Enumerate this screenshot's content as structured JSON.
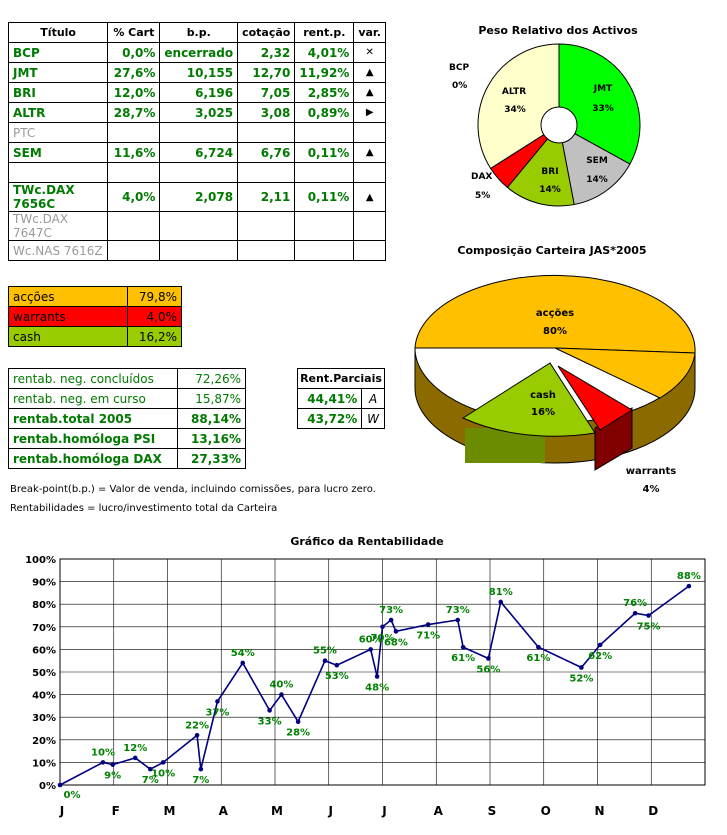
{
  "portfolio": {
    "headers": [
      "Título",
      "% Cart",
      "b.p.",
      "cotação",
      "rent.p.",
      "var."
    ],
    "rows": [
      {
        "titulo": "BCP",
        "cart": "0,0%",
        "bp": "encerrado",
        "cot": "2,32",
        "rent": "4,01%",
        "var": "✕",
        "style": "green"
      },
      {
        "titulo": "JMT",
        "cart": "27,6%",
        "bp": "10,155",
        "cot": "12,70",
        "rent": "11,92%",
        "var": "▲",
        "style": "green"
      },
      {
        "titulo": "BRI",
        "cart": "12,0%",
        "bp": "6,196",
        "cot": "7,05",
        "rent": "2,85%",
        "var": "▲",
        "style": "green"
      },
      {
        "titulo": "ALTR",
        "cart": "28,7%",
        "bp": "3,025",
        "cot": "3,08",
        "rent": "0,89%",
        "var": "▶",
        "style": "green"
      },
      {
        "titulo": "PTC",
        "cart": "",
        "bp": "",
        "cot": "",
        "rent": "",
        "var": "",
        "style": "gray"
      },
      {
        "titulo": "SEM",
        "cart": "11,6%",
        "bp": "6,724",
        "cot": "6,76",
        "rent": "0,11%",
        "var": "▲",
        "style": "green"
      },
      {
        "titulo": "",
        "cart": "",
        "bp": "",
        "cot": "",
        "rent": "",
        "var": "",
        "style": "green"
      },
      {
        "titulo": "TWc.DAX 7656C",
        "cart": "4,0%",
        "bp": "2,078",
        "cot": "2,11",
        "rent": "0,11%",
        "var": "▲",
        "style": "green"
      },
      {
        "titulo": "TWc.DAX 7647C",
        "cart": "",
        "bp": "",
        "cot": "",
        "rent": "",
        "var": "",
        "style": "gray"
      },
      {
        "titulo": "Wc.NAS 7616Z",
        "cart": "",
        "bp": "",
        "cot": "",
        "rent": "",
        "var": "",
        "style": "gray"
      }
    ]
  },
  "allocation": [
    {
      "label": "acções",
      "value": "79,8%",
      "color": "#ffc000"
    },
    {
      "label": "warrants",
      "value": "4,0%",
      "color": "#ff0000"
    },
    {
      "label": "cash",
      "value": "16,2%",
      "color": "#99cc00"
    }
  ],
  "returns": [
    {
      "label": "rentab. neg. concluídos",
      "value": "72,26%",
      "bold": false
    },
    {
      "label": "rentab. neg. em curso",
      "value": "15,87%",
      "bold": false
    },
    {
      "label": "rentab.total 2005",
      "value": "88,14%",
      "bold": true
    },
    {
      "label": "rentab.homóloga PSI",
      "value": "13,16%",
      "bold": true
    },
    {
      "label": "rentab.homóloga DAX",
      "value": "27,33%",
      "bold": true
    }
  ],
  "partial": {
    "title": "Rent.Parciais",
    "rows": [
      {
        "value": "44,41%",
        "tag": "A"
      },
      {
        "value": "43,72%",
        "tag": "W"
      }
    ]
  },
  "notes": {
    "line1": "Break-point(b.p.) = Valor de venda, incluindo comissões, para lucro zero.",
    "line2": "Rentabilidades = lucro/investimento total da Carteira"
  },
  "chart_data": [
    {
      "type": "pie",
      "title": "Peso Relativo dos Activos",
      "slices": [
        {
          "label": "JMT",
          "value": 33,
          "display": "33%",
          "color": "#00ff00"
        },
        {
          "label": "SEM",
          "value": 14,
          "display": "14%",
          "color": "#c0c0c0"
        },
        {
          "label": "BRI",
          "value": 14,
          "display": "14%",
          "color": "#99cc00"
        },
        {
          "label": "DAX",
          "value": 5,
          "display": "5%",
          "color": "#ff0000"
        },
        {
          "label": "BCP",
          "value": 0,
          "display": "0%",
          "color": "#ffffff"
        },
        {
          "label": "ALTR",
          "value": 34,
          "display": "34%",
          "color": "#ffffcc"
        }
      ]
    },
    {
      "type": "pie",
      "title": "Composição Carteira JAS*2005",
      "slices": [
        {
          "label": "acções",
          "value": 80,
          "display": "80%",
          "color": "#ffc000"
        },
        {
          "label": "warrants",
          "value": 4,
          "display": "4%",
          "color": "#ff0000"
        },
        {
          "label": "cash",
          "value": 16,
          "display": "16%",
          "color": "#99cc00"
        }
      ]
    },
    {
      "type": "line",
      "title": "Gráfico da Rentabilidade",
      "months": [
        "J",
        "F",
        "M",
        "A",
        "M",
        "J",
        "J",
        "A",
        "S",
        "O",
        "N",
        "D"
      ],
      "ylim": [
        0,
        100
      ],
      "yticks": [
        "0%",
        "10%",
        "20%",
        "30%",
        "40%",
        "50%",
        "60%",
        "70%",
        "80%",
        "90%",
        "100%"
      ],
      "series": [
        {
          "color": "#000080",
          "points": [
            {
              "x": 0.0,
              "y": 0
            },
            {
              "x": 0.8,
              "y": 10,
              "label": "10%"
            },
            {
              "x": 0.98,
              "y": 9,
              "label": "9%"
            },
            {
              "x": 1.4,
              "y": 12,
              "label": "12%"
            },
            {
              "x": 1.68,
              "y": 7,
              "label": "7%"
            },
            {
              "x": 1.92,
              "y": 10,
              "label": "10%"
            },
            {
              "x": 2.55,
              "y": 22,
              "label": "22%"
            },
            {
              "x": 2.62,
              "y": 7,
              "label": "7%"
            },
            {
              "x": 2.93,
              "y": 37,
              "label": "37%"
            },
            {
              "x": 3.4,
              "y": 54,
              "label": "54%"
            },
            {
              "x": 3.9,
              "y": 33,
              "label": "33%"
            },
            {
              "x": 4.12,
              "y": 40,
              "label": "40%"
            },
            {
              "x": 4.43,
              "y": 28,
              "label": "28%"
            },
            {
              "x": 4.93,
              "y": 55,
              "label": "55%"
            },
            {
              "x": 5.15,
              "y": 53,
              "label": "53%"
            },
            {
              "x": 5.78,
              "y": 60,
              "label": "60%"
            },
            {
              "x": 5.9,
              "y": 48,
              "label": "48%"
            },
            {
              "x": 6.0,
              "y": 70,
              "label": "70%"
            },
            {
              "x": 6.16,
              "y": 73,
              "label": "73%"
            },
            {
              "x": 6.25,
              "y": 68,
              "label": "68%"
            },
            {
              "x": 6.85,
              "y": 71,
              "label": "71%"
            },
            {
              "x": 7.4,
              "y": 73,
              "label": "73%"
            },
            {
              "x": 7.5,
              "y": 61,
              "label": "61%"
            },
            {
              "x": 7.97,
              "y": 56,
              "label": "56%"
            },
            {
              "x": 8.2,
              "y": 81,
              "label": "81%"
            },
            {
              "x": 8.9,
              "y": 61,
              "label": "61%"
            },
            {
              "x": 9.7,
              "y": 52,
              "label": "52%"
            },
            {
              "x": 10.05,
              "y": 62,
              "label": "62%"
            },
            {
              "x": 10.7,
              "y": 76,
              "label": "76%"
            },
            {
              "x": 10.95,
              "y": 75,
              "label": "75%"
            },
            {
              "x": 11.7,
              "y": 88,
              "label": "88%"
            }
          ]
        }
      ]
    }
  ]
}
